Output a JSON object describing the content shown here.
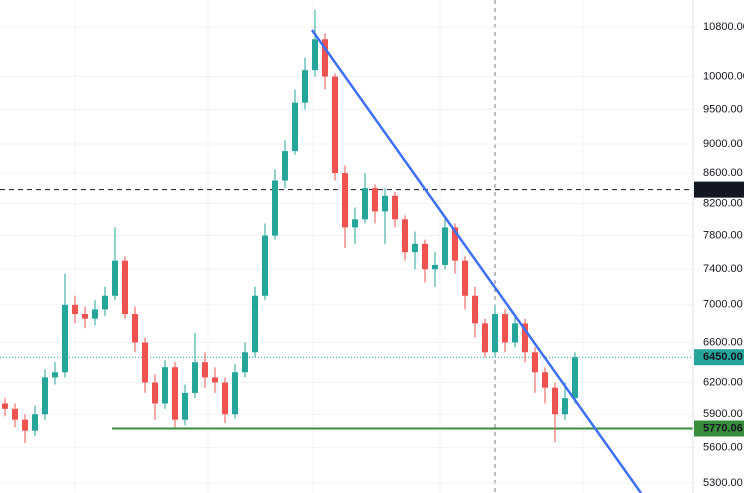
{
  "chart_data": {
    "type": "candlestick",
    "open": [
      6000,
      5950,
      5850,
      5750,
      5900,
      6250,
      6300,
      7000,
      6900,
      6850,
      6950,
      7100,
      7500,
      6900,
      6600,
      6200,
      6000,
      6350,
      5850,
      6100,
      6400,
      6250,
      6200,
      5900,
      6300,
      6500,
      7100,
      7800,
      8500,
      8900,
      9600,
      10100,
      10600,
      10000,
      8600,
      7900,
      8000,
      8400,
      8100,
      8300,
      8000,
      7600,
      7700,
      7400,
      7450,
      7900,
      7500,
      7100,
      6800,
      6500,
      6900,
      6600,
      6800,
      6500,
      6300,
      6150,
      5900,
      6050
    ],
    "high": [
      6050,
      6000,
      5900,
      5980,
      6330,
      6400,
      7350,
      7100,
      6980,
      7050,
      7200,
      7900,
      7550,
      6980,
      6650,
      6280,
      6420,
      6400,
      6180,
      6700,
      6500,
      6350,
      6250,
      6380,
      6600,
      7200,
      7950,
      8650,
      9050,
      9800,
      10300,
      11100,
      10700,
      10050,
      8700,
      8150,
      8600,
      8450,
      8400,
      8350,
      8050,
      7850,
      7750,
      7600,
      8000,
      7950,
      7550,
      7200,
      6850,
      7000,
      6950,
      6900,
      6850,
      6550,
      6350,
      6200,
      6200,
      6500
    ],
    "low": [
      5880,
      5780,
      5640,
      5700,
      5850,
      6180,
      6250,
      6800,
      6750,
      6780,
      6880,
      7050,
      6850,
      6500,
      6100,
      5850,
      5950,
      5780,
      5800,
      6050,
      6150,
      6100,
      5820,
      5860,
      6250,
      6450,
      7050,
      7750,
      8400,
      8850,
      9500,
      10000,
      9800,
      8500,
      7650,
      7700,
      7950,
      7950,
      7700,
      7900,
      7500,
      7400,
      7250,
      7200,
      7400,
      7350,
      6950,
      6650,
      6450,
      6450,
      6500,
      6550,
      6400,
      6100,
      6000,
      5650,
      5850,
      6000
    ],
    "close": [
      5950,
      5850,
      5750,
      5900,
      6250,
      6300,
      7000,
      6900,
      6850,
      6950,
      7100,
      7500,
      6900,
      6600,
      6200,
      6000,
      6350,
      5850,
      6100,
      6400,
      6250,
      6200,
      5900,
      6300,
      6500,
      7100,
      7800,
      8500,
      8900,
      9600,
      10100,
      10600,
      10000,
      8600,
      7900,
      8000,
      8400,
      8100,
      8300,
      8000,
      7600,
      7700,
      7400,
      7450,
      7900,
      7500,
      7100,
      6800,
      6500,
      6900,
      6600,
      6800,
      6500,
      6300,
      6150,
      5900,
      6050,
      6450
    ],
    "up_color": "#26a69a",
    "down_color": "#ef5350",
    "log_scale": true,
    "grid": true,
    "ylim": [
      5217,
      11270
    ],
    "yticks": [
      {
        "value": 5300,
        "label": "5300.00"
      },
      {
        "value": 5600,
        "label": "5600.00"
      },
      {
        "value": 5900,
        "label": "5900.00"
      },
      {
        "value": 6200,
        "label": "6200.00"
      },
      {
        "value": 6600,
        "label": "6600.00"
      },
      {
        "value": 7000,
        "label": "7000.00"
      },
      {
        "value": 7400,
        "label": "7400.00"
      },
      {
        "value": 7800,
        "label": "7800.00"
      },
      {
        "value": 8200,
        "label": "8200.00"
      },
      {
        "value": 8600,
        "label": "8600.00"
      },
      {
        "value": 9000,
        "label": "9000.00"
      },
      {
        "value": 9500,
        "label": "9500.00"
      },
      {
        "value": 10000,
        "label": "10000.00"
      },
      {
        "value": 10800,
        "label": "10800.00"
      }
    ],
    "markers": [
      {
        "value": 8380.42,
        "label": "8380.42",
        "color": "#131722",
        "style": "dashed"
      },
      {
        "value": 6450,
        "label": "6450.00",
        "color": "#26a69a",
        "style": "dotted"
      },
      {
        "value": 5770.06,
        "label": "5770.06",
        "color": "#388e3c",
        "style": "solid"
      }
    ]
  }
}
